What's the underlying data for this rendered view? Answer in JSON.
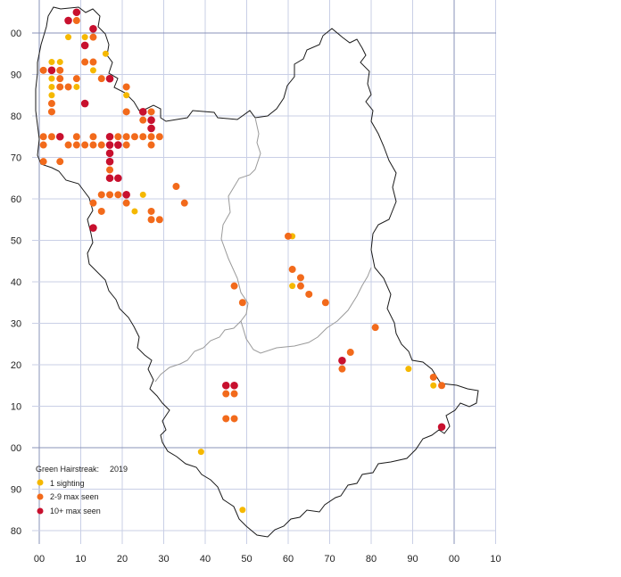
{
  "legend": {
    "species": "Green Hairstreak:",
    "year": "2019",
    "items": [
      {
        "key": "one",
        "label": "1 sighting",
        "color": "#f5b800"
      },
      {
        "key": "mid",
        "label": "2-9 max seen",
        "color": "#f26a1b"
      },
      {
        "key": "high",
        "label": "10+ max seen",
        "color": "#c8102e"
      }
    ]
  },
  "grid": {
    "x_labels": [
      "00",
      "10",
      "20",
      "30",
      "40",
      "50",
      "60",
      "70",
      "80",
      "90",
      "00",
      "10"
    ],
    "y_labels": [
      "00",
      "90",
      "80",
      "70",
      "60",
      "50",
      "40",
      "30",
      "20",
      "10",
      "00",
      "90",
      "80"
    ],
    "line_color": "#c9cfe6",
    "major_line_color": "#8a93b8"
  },
  "records": {
    "one": [
      [
        7,
        99
      ],
      [
        11,
        99
      ],
      [
        3,
        93
      ],
      [
        5,
        93
      ],
      [
        13,
        91
      ],
      [
        16,
        95
      ],
      [
        3,
        89
      ],
      [
        3,
        85
      ],
      [
        3,
        87
      ],
      [
        9,
        87
      ],
      [
        21,
        85
      ],
      [
        25,
        61
      ],
      [
        23,
        57
      ],
      [
        61,
        51
      ],
      [
        61,
        39
      ],
      [
        89,
        19
      ],
      [
        95,
        15
      ],
      [
        39,
        -1
      ],
      [
        49,
        -15
      ]
    ],
    "mid": [
      [
        1,
        91
      ],
      [
        3,
        91
      ],
      [
        5,
        91
      ],
      [
        9,
        89
      ],
      [
        11,
        93
      ],
      [
        13,
        93
      ],
      [
        13,
        99
      ],
      [
        9,
        103
      ],
      [
        5,
        89
      ],
      [
        5,
        87
      ],
      [
        7,
        87
      ],
      [
        3,
        83
      ],
      [
        3,
        81
      ],
      [
        15,
        89
      ],
      [
        21,
        87
      ],
      [
        21,
        81
      ],
      [
        25,
        79
      ],
      [
        27,
        81
      ],
      [
        1,
        75
      ],
      [
        3,
        75
      ],
      [
        9,
        75
      ],
      [
        11,
        73
      ],
      [
        13,
        75
      ],
      [
        15,
        73
      ],
      [
        19,
        75
      ],
      [
        21,
        75
      ],
      [
        23,
        75
      ],
      [
        25,
        75
      ],
      [
        27,
        75
      ],
      [
        29,
        75
      ],
      [
        1,
        73
      ],
      [
        7,
        73
      ],
      [
        9,
        73
      ],
      [
        13,
        73
      ],
      [
        21,
        73
      ],
      [
        27,
        73
      ],
      [
        1,
        69
      ],
      [
        5,
        69
      ],
      [
        17,
        67
      ],
      [
        15,
        61
      ],
      [
        17,
        61
      ],
      [
        19,
        61
      ],
      [
        13,
        59
      ],
      [
        15,
        57
      ],
      [
        21,
        59
      ],
      [
        27,
        57
      ],
      [
        27,
        55
      ],
      [
        29,
        55
      ],
      [
        33,
        63
      ],
      [
        35,
        59
      ],
      [
        60,
        51
      ],
      [
        61,
        43
      ],
      [
        63,
        41
      ],
      [
        63,
        39
      ],
      [
        65,
        37
      ],
      [
        69,
        35
      ],
      [
        47,
        39
      ],
      [
        49,
        35
      ],
      [
        81,
        29
      ],
      [
        75,
        23
      ],
      [
        73,
        19
      ],
      [
        95,
        17
      ],
      [
        97,
        15
      ],
      [
        45,
        13
      ],
      [
        47,
        13
      ],
      [
        45,
        7
      ],
      [
        47,
        7
      ]
    ],
    "high": [
      [
        9,
        105
      ],
      [
        7,
        103
      ],
      [
        13,
        101
      ],
      [
        11,
        97
      ],
      [
        3,
        91
      ],
      [
        17,
        89
      ],
      [
        11,
        83
      ],
      [
        25,
        81
      ],
      [
        27,
        79
      ],
      [
        27,
        77
      ],
      [
        5,
        75
      ],
      [
        17,
        75
      ],
      [
        17,
        73
      ],
      [
        19,
        73
      ],
      [
        17,
        71
      ],
      [
        17,
        69
      ],
      [
        17,
        65
      ],
      [
        19,
        65
      ],
      [
        21,
        61
      ],
      [
        13,
        53
      ],
      [
        73,
        21
      ],
      [
        45,
        15
      ],
      [
        47,
        15
      ],
      [
        97,
        5
      ]
    ]
  }
}
